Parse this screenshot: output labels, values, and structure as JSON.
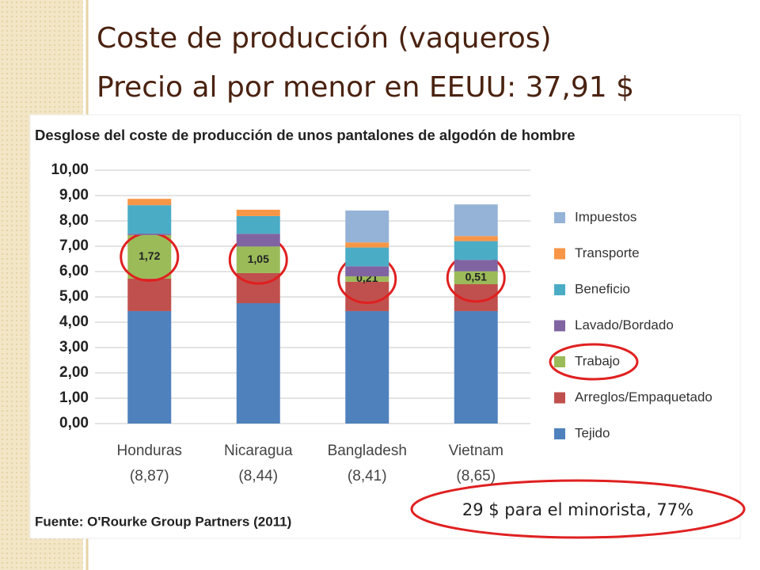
{
  "slide": {
    "title_lines": [
      "Coste de producción (vaqueros)",
      "Precio al por menor en EEUU: 37,91 $"
    ],
    "annotation": "29 $ para el minorista, 77%"
  },
  "chart_data": {
    "type": "stacked_bar",
    "title": "Desglose del coste de producción de unos pantalones de algodón de hombre",
    "source": "Fuente: O'Rourke Group Partners (2011)",
    "categories": [
      "Honduras",
      "Nicaragua",
      "Bangladesh",
      "Vietnam"
    ],
    "category_subtitles": [
      "(8,87)",
      "(8,44)",
      "(8,41)",
      "(8,65)"
    ],
    "series": [
      {
        "name": "Tejido",
        "color": "#4f81bd",
        "values": [
          4.44,
          4.75,
          4.44,
          4.44
        ]
      },
      {
        "name": "Arreglos/Empaquetado",
        "color": "#c0504d",
        "values": [
          1.28,
          1.19,
          1.16,
          1.06
        ]
      },
      {
        "name": "Trabajo",
        "color": "#9bbb59",
        "values": [
          1.72,
          1.05,
          0.21,
          0.51
        ],
        "value_labels": [
          "1,72",
          "1,05",
          "0,21",
          "0,51"
        ]
      },
      {
        "name": "Lavado/Bordado",
        "color": "#8064a2",
        "values": [
          0.05,
          0.5,
          0.4,
          0.45
        ]
      },
      {
        "name": "Beneficio",
        "color": "#4bacc6",
        "values": [
          1.13,
          0.7,
          0.74,
          0.74
        ]
      },
      {
        "name": "Transporte",
        "color": "#f79646",
        "values": [
          0.25,
          0.25,
          0.2,
          0.2
        ]
      },
      {
        "name": "Impuestos",
        "color": "#95b3d7",
        "values": [
          0,
          0,
          1.26,
          1.25
        ]
      }
    ],
    "ylim": [
      0,
      10
    ],
    "yticks": [
      {
        "value": 0,
        "label": "0,00"
      },
      {
        "value": 1,
        "label": "1,00"
      },
      {
        "value": 2,
        "label": "2,00"
      },
      {
        "value": 3,
        "label": "3,00"
      },
      {
        "value": 4,
        "label": "4,00"
      },
      {
        "value": 5,
        "label": "5,00"
      },
      {
        "value": 6,
        "label": "6,00"
      },
      {
        "value": 7,
        "label": "7,00"
      },
      {
        "value": 8,
        "label": "8,00"
      },
      {
        "value": 9,
        "label": "9,00"
      },
      {
        "value": 10,
        "label": "10,00"
      }
    ],
    "grid": true,
    "legend": "right",
    "highlight": "Trabajo"
  }
}
